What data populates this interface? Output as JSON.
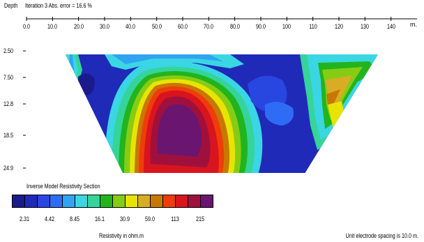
{
  "chart_data": {
    "type": "heatmap",
    "title": "Iteration 3 Abs. error = 16.6 %",
    "depth_label": "Depth",
    "x_unit": "m.",
    "x_ticks": [
      "0.0",
      "10.0",
      "20.0",
      "30.0",
      "40.0",
      "50.0",
      "60.0",
      "70.0",
      "80.0",
      "90.0",
      "100",
      "110",
      "120",
      "130",
      "140"
    ],
    "x_range": [
      0,
      150
    ],
    "y_ticks": [
      "2.50",
      "7.50",
      "12.8",
      "18.5",
      "24.9"
    ],
    "y_values": [
      2.5,
      7.5,
      12.8,
      18.5,
      24.9
    ],
    "section_x_range": [
      15,
      135
    ],
    "bottom_x_range": [
      37,
      107
    ],
    "legend_title": "Inverse Model Resistivity Section",
    "legend_colors": [
      "#1a1a8c",
      "#1f2ab8",
      "#2846e0",
      "#2f6cf5",
      "#2fa4f0",
      "#3ad6e4",
      "#35d49a",
      "#22b41c",
      "#86cc14",
      "#e8e400",
      "#d8ac24",
      "#c87800",
      "#f03c0a",
      "#d8141e",
      "#a0103c",
      "#6a1670"
    ],
    "legend_labels": [
      "2.31",
      "4.42",
      "8.45",
      "16.1",
      "30.9",
      "59.0",
      "113",
      "215"
    ],
    "legend_units": "Resistivity in ohm.m",
    "footer_note": "Unit electrode spacing is 10.0 m."
  }
}
